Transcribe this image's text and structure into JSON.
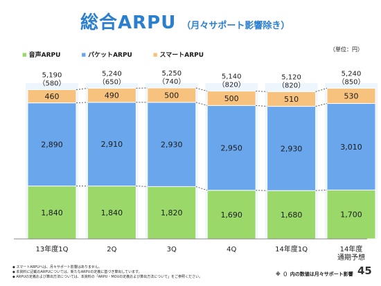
{
  "title": {
    "main": "総合ARPU",
    "sub": "（月々サポート影響除き）"
  },
  "unit": "（単位：円）",
  "colors": {
    "voice": "#9ad86a",
    "packet": "#6aa6ec",
    "smart": "#f7c27e",
    "title": "#2b7fcf"
  },
  "legend": [
    {
      "label": "音声ARPU",
      "marker": "■",
      "color": "#9ad86a"
    },
    {
      "label": "パケットARPU",
      "marker": "■",
      "color": "#6aa6ec"
    },
    {
      "label": "スマートARPU",
      "marker": "■",
      "color": "#f7c27e"
    }
  ],
  "chart_data": {
    "type": "bar",
    "stacked": true,
    "categories": [
      "13年度1Q",
      "2Q",
      "3Q",
      "4Q",
      "14年度1Q",
      "14年度\n通期予想"
    ],
    "series": [
      {
        "name": "音声ARPU",
        "values": [
          1840,
          1840,
          1820,
          1690,
          1680,
          1700
        ],
        "labels": [
          "1,840",
          "1,840",
          "1,820",
          "1,690",
          "1,680",
          "1,700"
        ]
      },
      {
        "name": "パケットARPU",
        "values": [
          2890,
          2910,
          2930,
          2950,
          2930,
          3010
        ],
        "labels": [
          "2,890",
          "2,910",
          "2,930",
          "2,950",
          "2,930",
          "3,010"
        ]
      },
      {
        "name": "スマートARPU",
        "values": [
          460,
          490,
          500,
          500,
          510,
          530
        ],
        "labels": [
          "460",
          "490",
          "500",
          "500",
          "510",
          "530"
        ]
      }
    ],
    "totals": [
      "5,190",
      "5,240",
      "5,250",
      "5,140",
      "5,120",
      "5,240"
    ],
    "paren": [
      "（580）",
      "（650）",
      "（740）",
      "（820）",
      "（820）",
      "（850）"
    ]
  },
  "notes": [
    "◆ スマートARPUへは、月々サポート影響はありません。",
    "◆ 本資料に記載のARPUについては、新たなARPUの定義に基づき算出しています。",
    "◆ ARPUの定義および算出方法については、本資料の「ARPU・MOUの定義および算出方法について」をご参照ください。"
  ],
  "note_right": "※（）内の数値は月々サポート影響",
  "page_number": "45"
}
